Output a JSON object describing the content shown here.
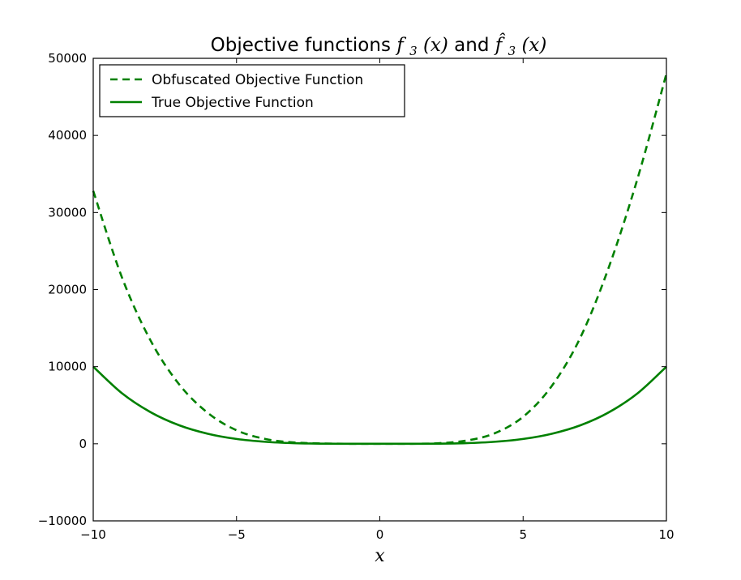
{
  "chart_data": {
    "type": "line",
    "title": {
      "prefix": "Objective functions ",
      "math1": "f",
      "math1_sub": "3",
      "math1_arg": "(x)",
      "join": " and ",
      "math2": "f̂",
      "math2_sub": "3",
      "math2_arg": "(x)"
    },
    "xlabel": "x",
    "ylabel": "",
    "xlim": [
      -10,
      10
    ],
    "ylim": [
      -10000,
      50000
    ],
    "xticks": [
      -10,
      -5,
      0,
      5,
      10
    ],
    "yticks": [
      -10000,
      0,
      10000,
      20000,
      30000,
      40000,
      50000
    ],
    "grid": false,
    "legend": "top-left",
    "color": "#008000",
    "x": [
      -10,
      -9,
      -8,
      -7,
      -6,
      -5,
      -4,
      -3,
      -2,
      -1,
      0,
      1,
      2,
      3,
      4,
      5,
      6,
      7,
      8,
      9,
      10
    ],
    "series": [
      {
        "name": "Obfuscated Objective Function",
        "style": "dashed",
        "values": [
          32800,
          21600,
          13400,
          7700,
          4000,
          1750,
          630,
          170,
          40,
          5,
          0,
          5,
          60,
          400,
          1350,
          3500,
          7500,
          13800,
          23000,
          34500,
          48000
        ]
      },
      {
        "name": "True Objective Function",
        "style": "solid",
        "values": [
          10000,
          6560,
          4100,
          2400,
          1300,
          625,
          260,
          80,
          16,
          1,
          0,
          1,
          16,
          80,
          260,
          625,
          1300,
          2400,
          4100,
          6560,
          10000
        ]
      }
    ]
  }
}
